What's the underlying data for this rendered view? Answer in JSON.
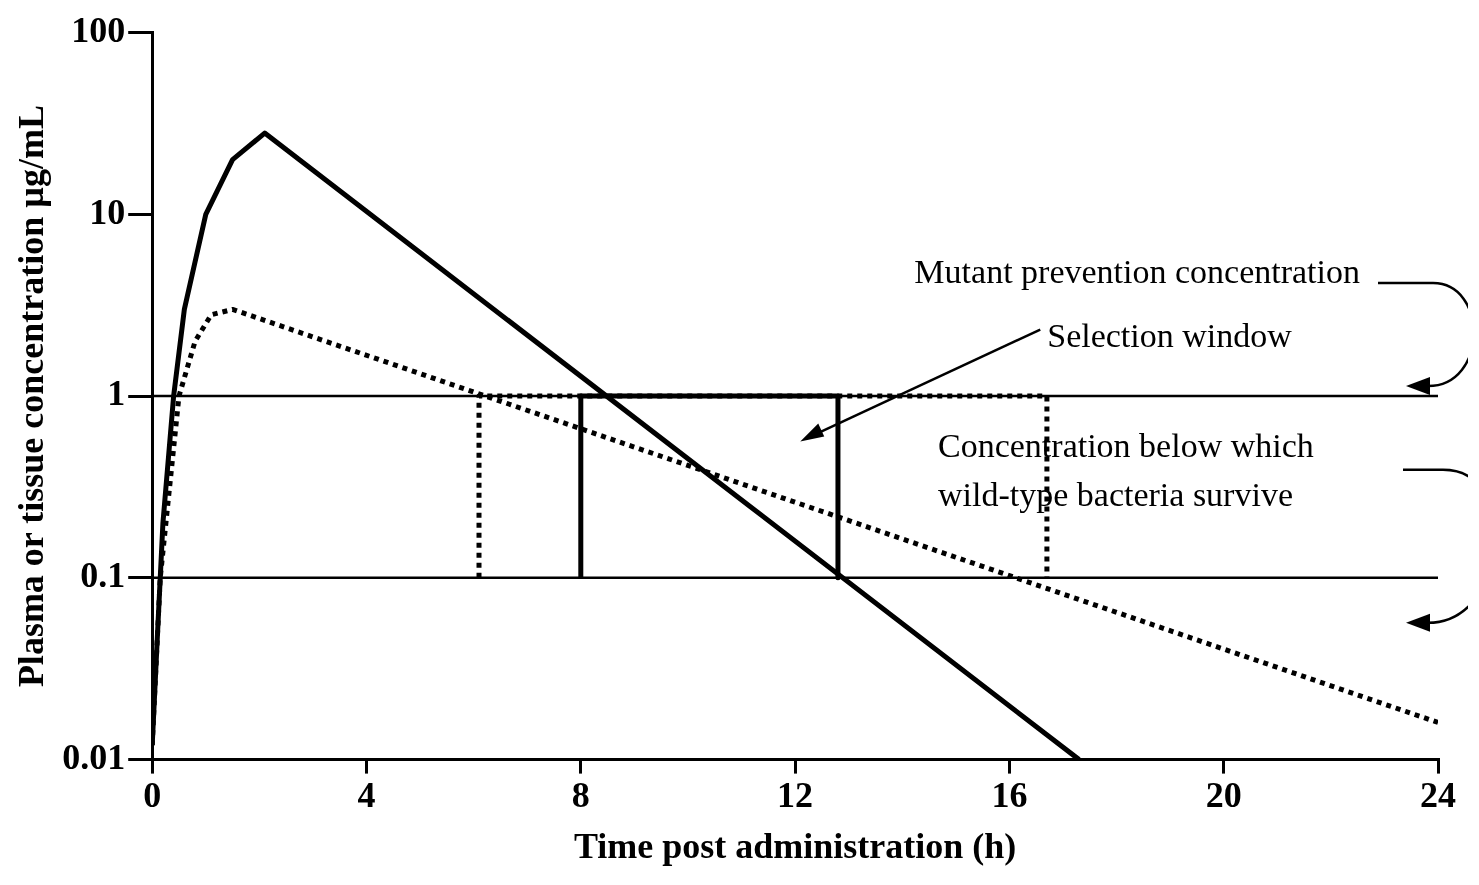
{
  "chart_data": {
    "type": "line",
    "xlabel": "Time post administration (h)",
    "ylabel": "Plasma or tissue concentration µg/mL",
    "log": "y",
    "xlim": [
      0,
      24
    ],
    "xticks": [
      0,
      4,
      8,
      12,
      16,
      20,
      24
    ],
    "ylim": [
      0.01,
      100
    ],
    "yticks": [
      0.01,
      0.1,
      1,
      10,
      100
    ],
    "grid": false,
    "legend": false,
    "marker": "none",
    "series": [
      {
        "color": "#000000",
        "line_style": "solid",
        "x": [
          0,
          0.1,
          0.2,
          0.4,
          0.6,
          1.0,
          1.5,
          2.1,
          17.3
        ],
        "values": [
          0.012,
          0.05,
          0.2,
          1,
          3,
          10,
          20,
          28,
          0.01
        ]
      },
      {
        "color": "#000000",
        "line_style": "dotted",
        "x": [
          0,
          0.15,
          0.5,
          0.8,
          1.1,
          1.5,
          24
        ],
        "values": [
          0.012,
          0.1,
          1,
          2,
          2.8,
          3,
          0.016
        ]
      },
      {
        "color": "#000000",
        "line_style": "solid",
        "x": [
          8,
          8,
          12.8,
          12.8
        ],
        "values": [
          0.1,
          1,
          1,
          0.1
        ]
      },
      {
        "color": "#000000",
        "line_style": "dotted",
        "x": [
          6.1,
          6.1,
          16.7,
          16.7
        ],
        "values": [
          0.1,
          1,
          1,
          0.1
        ]
      }
    ],
    "ref_lines": [
      {
        "axis": "y",
        "value": 1,
        "color": "#000000"
      },
      {
        "axis": "y",
        "value": 0.1,
        "color": "#000000"
      }
    ],
    "annotations": [
      "Mutant prevention concentration",
      "Selection window",
      "Concentration below which wild-type bacteria survive"
    ]
  }
}
